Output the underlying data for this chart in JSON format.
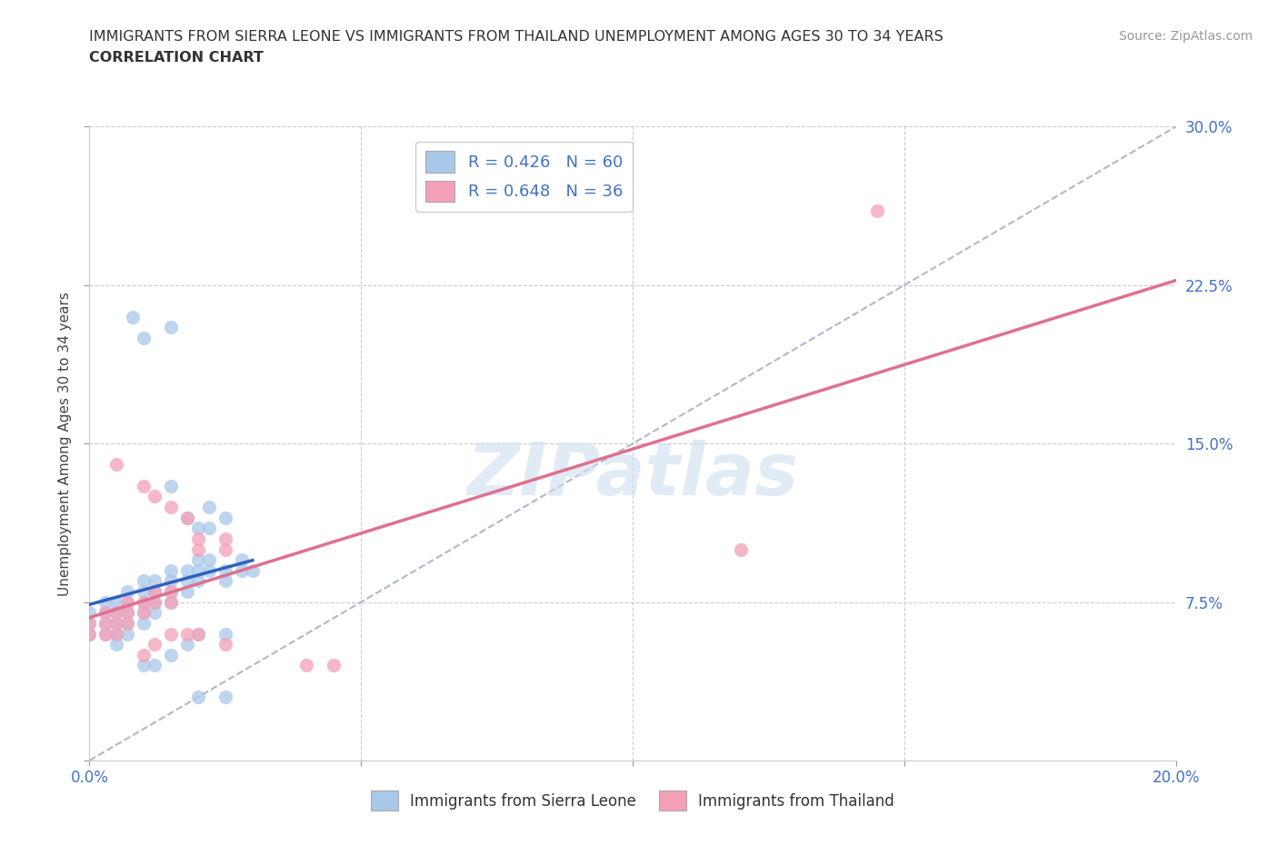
{
  "title_line1": "IMMIGRANTS FROM SIERRA LEONE VS IMMIGRANTS FROM THAILAND UNEMPLOYMENT AMONG AGES 30 TO 34 YEARS",
  "title_line2": "CORRELATION CHART",
  "source": "Source: ZipAtlas.com",
  "ylabel": "Unemployment Among Ages 30 to 34 years",
  "xlim": [
    0.0,
    0.2
  ],
  "ylim": [
    0.0,
    0.3
  ],
  "xticks": [
    0.0,
    0.05,
    0.1,
    0.15,
    0.2
  ],
  "yticks": [
    0.075,
    0.15,
    0.225,
    0.3
  ],
  "grid_color": "#cccccc",
  "background_color": "#ffffff",
  "sierra_leone_color": "#a8c8e8",
  "thailand_color": "#f4a0b8",
  "sierra_leone_line_color": "#3060c0",
  "thailand_line_color": "#e07090",
  "diagonal_color": "#b0b8c8",
  "R_sierra": 0.426,
  "N_sierra": 60,
  "R_thailand": 0.648,
  "N_thailand": 36,
  "watermark": "ZIPatlas",
  "sierra_leone_points": [
    [
      0.0,
      0.06
    ],
    [
      0.0,
      0.065
    ],
    [
      0.0,
      0.07
    ],
    [
      0.003,
      0.06
    ],
    [
      0.003,
      0.065
    ],
    [
      0.003,
      0.07
    ],
    [
      0.003,
      0.075
    ],
    [
      0.005,
      0.055
    ],
    [
      0.005,
      0.06
    ],
    [
      0.005,
      0.065
    ],
    [
      0.005,
      0.07
    ],
    [
      0.005,
      0.075
    ],
    [
      0.007,
      0.06
    ],
    [
      0.007,
      0.065
    ],
    [
      0.007,
      0.07
    ],
    [
      0.007,
      0.075
    ],
    [
      0.007,
      0.08
    ],
    [
      0.01,
      0.065
    ],
    [
      0.01,
      0.07
    ],
    [
      0.01,
      0.075
    ],
    [
      0.01,
      0.08
    ],
    [
      0.01,
      0.085
    ],
    [
      0.012,
      0.07
    ],
    [
      0.012,
      0.075
    ],
    [
      0.012,
      0.08
    ],
    [
      0.012,
      0.085
    ],
    [
      0.015,
      0.075
    ],
    [
      0.015,
      0.08
    ],
    [
      0.015,
      0.085
    ],
    [
      0.015,
      0.09
    ],
    [
      0.018,
      0.08
    ],
    [
      0.018,
      0.085
    ],
    [
      0.018,
      0.09
    ],
    [
      0.02,
      0.085
    ],
    [
      0.02,
      0.09
    ],
    [
      0.02,
      0.095
    ],
    [
      0.022,
      0.09
    ],
    [
      0.022,
      0.095
    ],
    [
      0.025,
      0.085
    ],
    [
      0.025,
      0.09
    ],
    [
      0.028,
      0.09
    ],
    [
      0.028,
      0.095
    ],
    [
      0.03,
      0.09
    ],
    [
      0.015,
      0.13
    ],
    [
      0.018,
      0.115
    ],
    [
      0.02,
      0.11
    ],
    [
      0.022,
      0.12
    ],
    [
      0.022,
      0.11
    ],
    [
      0.025,
      0.115
    ],
    [
      0.008,
      0.21
    ],
    [
      0.01,
      0.2
    ],
    [
      0.015,
      0.205
    ],
    [
      0.01,
      0.045
    ],
    [
      0.012,
      0.045
    ],
    [
      0.015,
      0.05
    ],
    [
      0.018,
      0.055
    ],
    [
      0.02,
      0.06
    ],
    [
      0.025,
      0.06
    ],
    [
      0.02,
      0.03
    ],
    [
      0.025,
      0.03
    ]
  ],
  "thailand_points": [
    [
      0.0,
      0.06
    ],
    [
      0.0,
      0.065
    ],
    [
      0.003,
      0.06
    ],
    [
      0.003,
      0.065
    ],
    [
      0.003,
      0.07
    ],
    [
      0.005,
      0.06
    ],
    [
      0.005,
      0.065
    ],
    [
      0.005,
      0.07
    ],
    [
      0.007,
      0.065
    ],
    [
      0.007,
      0.07
    ],
    [
      0.007,
      0.075
    ],
    [
      0.01,
      0.07
    ],
    [
      0.01,
      0.075
    ],
    [
      0.012,
      0.075
    ],
    [
      0.012,
      0.08
    ],
    [
      0.015,
      0.075
    ],
    [
      0.015,
      0.08
    ],
    [
      0.005,
      0.14
    ],
    [
      0.01,
      0.13
    ],
    [
      0.012,
      0.125
    ],
    [
      0.015,
      0.12
    ],
    [
      0.018,
      0.115
    ],
    [
      0.02,
      0.1
    ],
    [
      0.02,
      0.105
    ],
    [
      0.01,
      0.05
    ],
    [
      0.012,
      0.055
    ],
    [
      0.015,
      0.06
    ],
    [
      0.018,
      0.06
    ],
    [
      0.02,
      0.06
    ],
    [
      0.025,
      0.055
    ],
    [
      0.025,
      0.1
    ],
    [
      0.025,
      0.105
    ],
    [
      0.12,
      0.1
    ],
    [
      0.145,
      0.26
    ],
    [
      0.04,
      0.045
    ],
    [
      0.045,
      0.045
    ]
  ]
}
